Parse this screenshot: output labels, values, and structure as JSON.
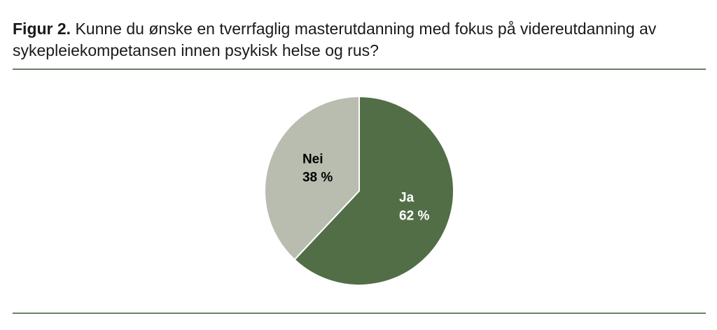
{
  "chart_data": {
    "type": "pie",
    "title_label": "Figur 2.",
    "title": "Kunne du ønske en tverrfaglig masterutdanning med fokus på videreutdanning av sykepleiekompetansen innen psykisk helse og rus?",
    "categories": [
      "Ja",
      "Nei"
    ],
    "values": [
      62,
      38
    ],
    "value_labels": [
      "62 %",
      "38 %"
    ],
    "colors": [
      "#526e47",
      "#b9bdaf"
    ],
    "label_colors": [
      "#ffffff",
      "#000000"
    ]
  }
}
